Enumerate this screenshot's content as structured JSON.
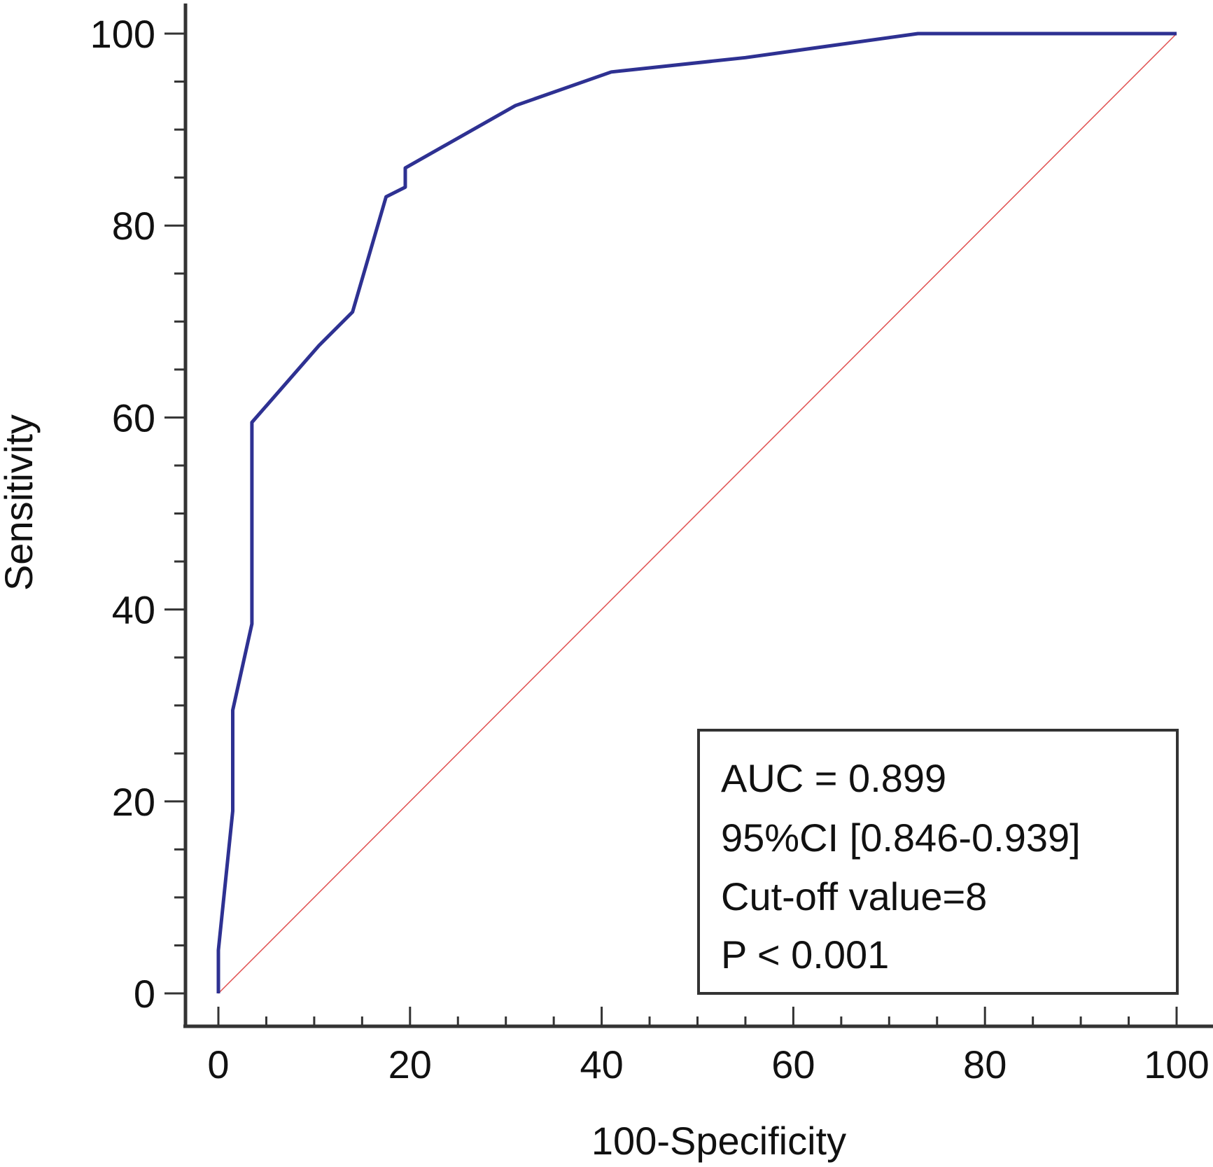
{
  "chart_data": {
    "type": "line",
    "title": "",
    "xlabel": "100-Specificity",
    "ylabel": "Sensitivity",
    "xlim": [
      0,
      100
    ],
    "ylim": [
      0,
      100
    ],
    "xticks": [
      "0",
      "20",
      "40",
      "60",
      "80",
      "100"
    ],
    "yticks": [
      "0",
      "20",
      "40",
      "60",
      "80",
      "100"
    ],
    "grid": false,
    "series": [
      {
        "role": "roc-curve",
        "color": "#2e3192",
        "x": [
          0,
          0,
          0,
          1.5,
          1.5,
          3.5,
          3.5,
          10.5,
          14,
          17.5,
          19.5,
          19.5,
          31,
          41,
          55,
          73,
          100
        ],
        "y": [
          0,
          4.5,
          4.5,
          19,
          29.5,
          38.5,
          59.5,
          67.5,
          71,
          83,
          84,
          86,
          92.5,
          96,
          97.5,
          100,
          100
        ]
      },
      {
        "role": "reference-line",
        "color": "#e05050",
        "x": [
          0,
          100
        ],
        "y": [
          0,
          100
        ]
      }
    ],
    "annotation": {
      "lines": [
        "AUC = 0.899",
        "95%CI [0.846-0.939]",
        "Cut-off value=8",
        "P < 0.001"
      ],
      "placement": "bottom-right"
    }
  }
}
